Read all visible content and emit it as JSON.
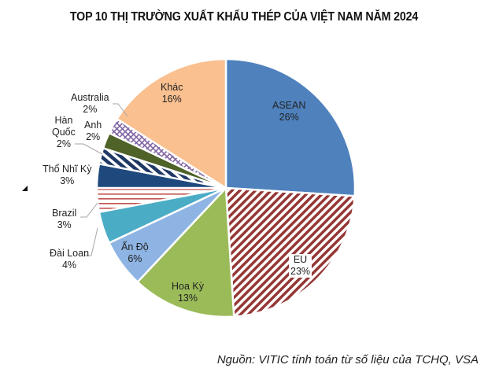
{
  "title": "TOP 10 THỊ TRƯỜNG XUẤT KHẨU THÉP CỦA VIỆT NAM NĂM 2024",
  "source": "Nguồn: VITIC tính toán từ số liệu của TCHQ, VSA",
  "chart_data": {
    "type": "pie",
    "title": "TOP 10 THỊ TRƯỜNG XUẤT KHẨU THÉP CỦA VIỆT NAM NĂM 2024",
    "categories": [
      "ASEAN",
      "EU",
      "Hoa Kỳ",
      "Ấn Độ",
      "Đài Loan",
      "Brazil",
      "Thổ Nhĩ Kỳ",
      "Hàn Quốc",
      "Anh",
      "Australia",
      "Khác"
    ],
    "values": [
      26,
      23,
      13,
      6,
      4,
      3,
      3,
      2,
      2,
      2,
      16
    ],
    "unit": "%",
    "start_angle": "12 o'clock, clockwise",
    "colors": [
      "#4f81bd",
      "#953735",
      "#9bbb59",
      "#8eb4e3",
      "#4bacc6",
      "#c0504d",
      "#1f497d",
      "#1f3864",
      "#4f6228",
      "#8064a2",
      "#fac090"
    ],
    "patterns": [
      "solid",
      "diagonal-stripes",
      "solid",
      "solid",
      "solid",
      "horizontal-stripes",
      "solid",
      "diagonal-stripes",
      "solid",
      "crosshatch",
      "solid"
    ],
    "labels": {
      "ASEAN": {
        "name": "ASEAN",
        "pct": "26%"
      },
      "EU": {
        "name": "EU",
        "pct": "23%"
      },
      "HoaKy": {
        "name": "Hoa Kỳ",
        "pct": "13%"
      },
      "AnDo": {
        "name": "Ấn Độ",
        "pct": "6%"
      },
      "DaiLoan": {
        "name": "Đài Loan",
        "pct": "4%"
      },
      "Brazil": {
        "name": "Brazil",
        "pct": "3%"
      },
      "ThoNhiKy": {
        "name": "Thổ Nhĩ Kỳ",
        "pct": "3%"
      },
      "HanQuoc": {
        "name1": "Hàn",
        "name2": "Quốc",
        "pct": "2%"
      },
      "Anh": {
        "name": "Anh",
        "pct": "2%"
      },
      "Australia": {
        "name": "Australia",
        "pct": "2%"
      },
      "Khac": {
        "name": "Khác",
        "pct": "16%"
      }
    },
    "legend": "none (data labels on slices)"
  }
}
